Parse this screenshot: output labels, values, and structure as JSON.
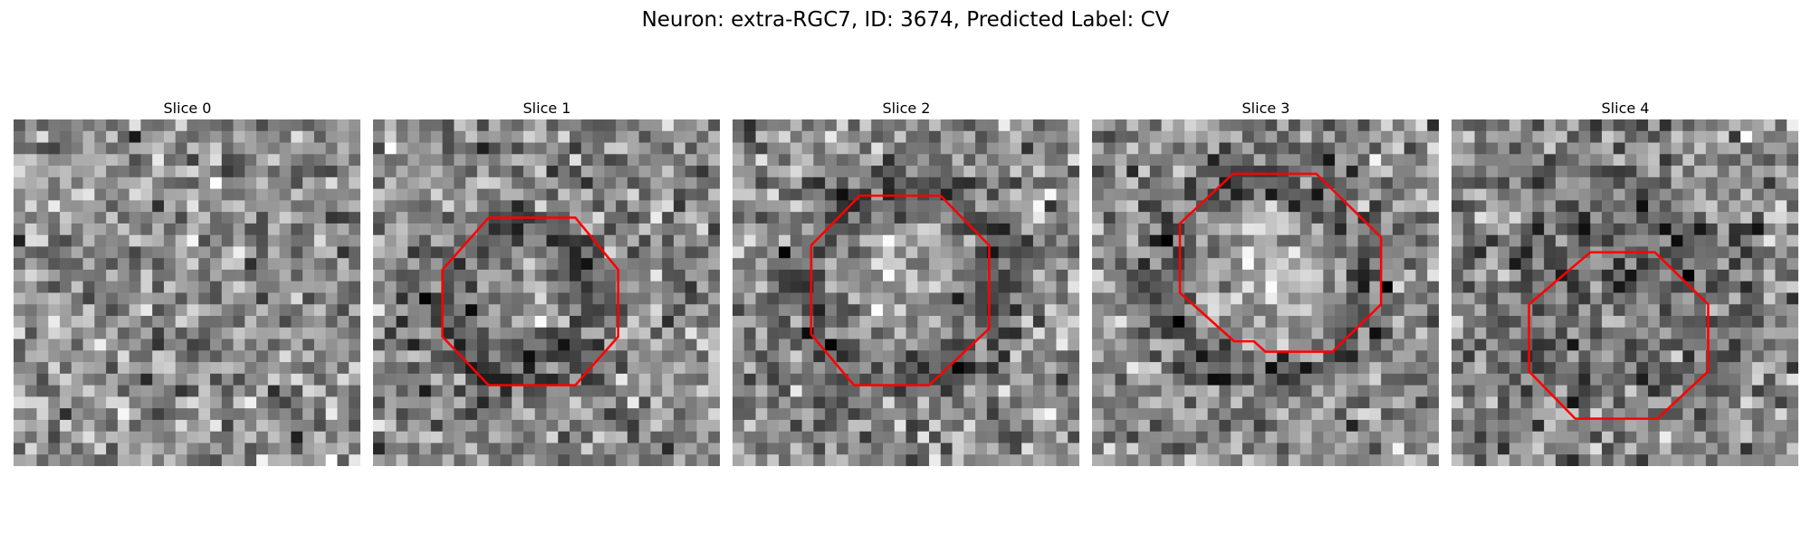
{
  "figure": {
    "title": "Neuron: extra-RGC7, ID: 3674, Predicted Label: CV"
  },
  "contour_color": "#ff0000",
  "grid": {
    "rows": 30,
    "cols": 30
  },
  "slices": [
    {
      "title": "Slice 0",
      "seed": 11,
      "rings": [],
      "contour": []
    },
    {
      "title": "Slice 1",
      "seed": 23,
      "rings": [
        {
          "cx": 12.4,
          "cy": 15.8,
          "r": 6.2,
          "width": 2.6,
          "value": -0.26
        },
        {
          "cx": 12.4,
          "cy": 15.2,
          "r": 0.0,
          "width": 6.0,
          "value": 0.06
        }
      ],
      "contour": [
        [
          10.0,
          8.5
        ],
        [
          17.5,
          8.5
        ],
        [
          21.2,
          13.0
        ],
        [
          21.2,
          18.8
        ],
        [
          17.5,
          23.0
        ],
        [
          10.0,
          23.0
        ],
        [
          6.0,
          18.8
        ],
        [
          6.0,
          13.0
        ]
      ]
    },
    {
      "title": "Slice 2",
      "seed": 37,
      "rings": [
        {
          "cx": 14.5,
          "cy": 14.2,
          "r": 8.2,
          "width": 2.6,
          "value": -0.24
        },
        {
          "cx": 14.5,
          "cy": 14.2,
          "r": 0.0,
          "width": 6.5,
          "value": 0.14
        }
      ],
      "contour": [
        [
          11.0,
          6.6
        ],
        [
          18.0,
          6.6
        ],
        [
          22.2,
          10.9
        ],
        [
          22.2,
          18.1
        ],
        [
          17.0,
          23.0
        ],
        [
          10.5,
          23.0
        ],
        [
          6.8,
          18.6
        ],
        [
          6.8,
          10.9
        ]
      ]
    },
    {
      "title": "Slice 3",
      "seed": 51,
      "rings": [
        {
          "cx": 14.8,
          "cy": 14.0,
          "r": 8.6,
          "width": 2.6,
          "value": -0.25
        },
        {
          "cx": 14.8,
          "cy": 14.0,
          "r": 0.0,
          "width": 6.5,
          "value": 0.2
        }
      ],
      "contour": [
        [
          12.2,
          4.7
        ],
        [
          19.4,
          4.7
        ],
        [
          25.0,
          10.2
        ],
        [
          25.0,
          16.0
        ],
        [
          20.8,
          20.1
        ],
        [
          15.0,
          20.1
        ],
        [
          14.0,
          19.2
        ],
        [
          12.3,
          19.2
        ],
        [
          7.6,
          15.0
        ],
        [
          7.6,
          9.0
        ]
      ]
    },
    {
      "title": "Slice 4",
      "seed": 67,
      "rings": [
        {
          "cx": 15.0,
          "cy": 15.5,
          "r": 8.0,
          "width": 3.2,
          "value": -0.16
        },
        {
          "cx": 15.0,
          "cy": 16.5,
          "r": 0.0,
          "width": 4.5,
          "value": -0.08
        }
      ],
      "contour": [
        [
          12.0,
          11.5
        ],
        [
          17.6,
          11.5
        ],
        [
          22.2,
          16.0
        ],
        [
          22.2,
          21.8
        ],
        [
          17.8,
          25.9
        ],
        [
          10.7,
          25.9
        ],
        [
          6.7,
          21.8
        ],
        [
          6.7,
          16.0
        ]
      ]
    }
  ]
}
